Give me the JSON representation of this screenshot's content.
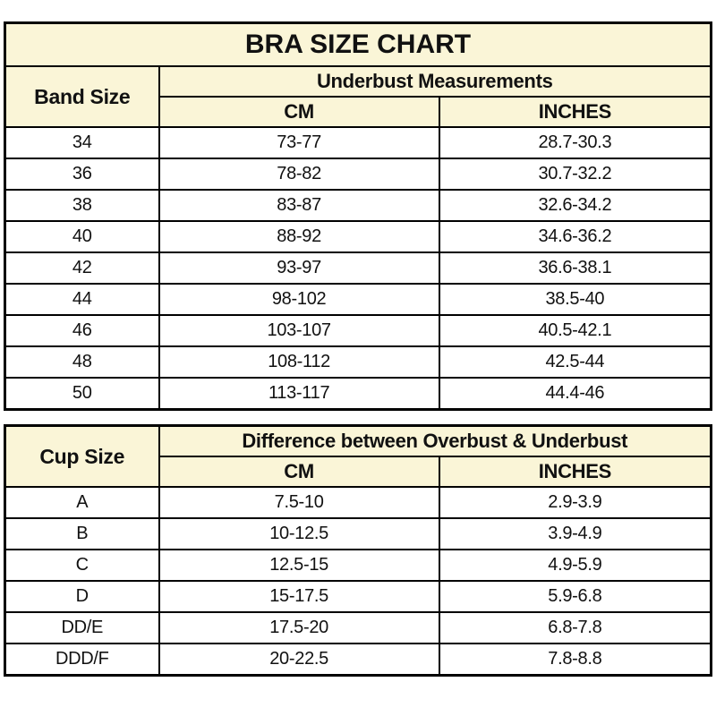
{
  "colors": {
    "header_bg": "#faf5d7",
    "row_bg": "#ffffff",
    "border": "#000000",
    "text": "#111111"
  },
  "band_table": {
    "title": "BRA SIZE CHART",
    "row_header": "Band Size",
    "group_header": "Underbust Measurements",
    "col_headers": {
      "cm": "CM",
      "inches": "INCHES"
    },
    "rows": [
      {
        "band": "34",
        "cm": "73-77",
        "inches": "28.7-30.3"
      },
      {
        "band": "36",
        "cm": "78-82",
        "inches": "30.7-32.2"
      },
      {
        "band": "38",
        "cm": "83-87",
        "inches": "32.6-34.2"
      },
      {
        "band": "40",
        "cm": "88-92",
        "inches": "34.6-36.2"
      },
      {
        "band": "42",
        "cm": "93-97",
        "inches": "36.6-38.1"
      },
      {
        "band": "44",
        "cm": "98-102",
        "inches": "38.5-40"
      },
      {
        "band": "46",
        "cm": "103-107",
        "inches": "40.5-42.1"
      },
      {
        "band": "48",
        "cm": "108-112",
        "inches": "42.5-44"
      },
      {
        "band": "50",
        "cm": "113-117",
        "inches": "44.4-46"
      }
    ]
  },
  "cup_table": {
    "row_header": "Cup Size",
    "group_header": "Difference between Overbust & Underbust",
    "col_headers": {
      "cm": "CM",
      "inches": "INCHES"
    },
    "rows": [
      {
        "cup": "A",
        "cm": "7.5-10",
        "inches": "2.9-3.9"
      },
      {
        "cup": "B",
        "cm": "10-12.5",
        "inches": "3.9-4.9"
      },
      {
        "cup": "C",
        "cm": "12.5-15",
        "inches": "4.9-5.9"
      },
      {
        "cup": "D",
        "cm": "15-17.5",
        "inches": "5.9-6.8"
      },
      {
        "cup": "DD/E",
        "cm": "17.5-20",
        "inches": "6.8-7.8"
      },
      {
        "cup": "DDD/F",
        "cm": "20-22.5",
        "inches": "7.8-8.8"
      }
    ]
  },
  "chart_data": [
    {
      "type": "table",
      "title": "BRA SIZE CHART",
      "columns": [
        "Band Size",
        "Underbust Measurements CM",
        "Underbust Measurements INCHES"
      ],
      "rows": [
        [
          "34",
          "73-77",
          "28.7-30.3"
        ],
        [
          "36",
          "78-82",
          "30.7-32.2"
        ],
        [
          "38",
          "83-87",
          "32.6-34.2"
        ],
        [
          "40",
          "88-92",
          "34.6-36.2"
        ],
        [
          "42",
          "93-97",
          "36.6-38.1"
        ],
        [
          "44",
          "98-102",
          "38.5-40"
        ],
        [
          "46",
          "103-107",
          "40.5-42.1"
        ],
        [
          "48",
          "108-112",
          "42.5-44"
        ],
        [
          "50",
          "113-117",
          "44.4-46"
        ]
      ]
    },
    {
      "type": "table",
      "title": "Cup Size",
      "columns": [
        "Cup Size",
        "Difference between Overbust & Underbust CM",
        "Difference between Overbust & Underbust INCHES"
      ],
      "rows": [
        [
          "A",
          "7.5-10",
          "2.9-3.9"
        ],
        [
          "B",
          "10-12.5",
          "3.9-4.9"
        ],
        [
          "C",
          "12.5-15",
          "4.9-5.9"
        ],
        [
          "D",
          "15-17.5",
          "5.9-6.8"
        ],
        [
          "DD/E",
          "17.5-20",
          "6.8-7.8"
        ],
        [
          "DDD/F",
          "20-22.5",
          "7.8-8.8"
        ]
      ]
    }
  ]
}
